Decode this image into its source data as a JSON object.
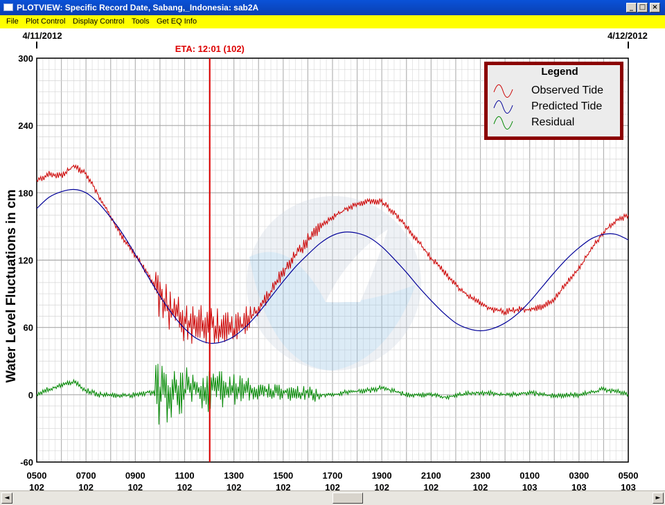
{
  "window": {
    "title": "PLOTVIEW: Specific Record Date, Sabang,_Indonesia: sab2A",
    "buttons": {
      "minimize": "_",
      "maximize": "□",
      "close": "×"
    }
  },
  "menu": [
    "File",
    "Plot Control",
    "Display Control",
    "Tools",
    "Get EQ Info"
  ],
  "scrollbar": {
    "left_arrow": "◄",
    "right_arrow": "►"
  },
  "colors": {
    "observed": "#cc0000",
    "predicted": "#000099",
    "residual": "#008800",
    "eta": "#dd0000",
    "legend_border": "#8b0000"
  },
  "chart_data": {
    "type": "line",
    "ylabel": "Water Level Fluctuations in cm",
    "ylim": [
      -60,
      300
    ],
    "yticks": [
      300,
      240,
      180,
      120,
      60,
      0,
      -60
    ],
    "xlim": [
      5,
      29
    ],
    "xticks": [
      {
        "h": 5,
        "time": "0500",
        "day": "102"
      },
      {
        "h": 7,
        "time": "0700",
        "day": "102"
      },
      {
        "h": 9,
        "time": "0900",
        "day": "102"
      },
      {
        "h": 11,
        "time": "1100",
        "day": "102"
      },
      {
        "h": 13,
        "time": "1300",
        "day": "102"
      },
      {
        "h": 15,
        "time": "1500",
        "day": "102"
      },
      {
        "h": 17,
        "time": "1700",
        "day": "102"
      },
      {
        "h": 19,
        "time": "1900",
        "day": "102"
      },
      {
        "h": 21,
        "time": "2100",
        "day": "102"
      },
      {
        "h": 23,
        "time": "2300",
        "day": "102"
      },
      {
        "h": 25,
        "time": "0100",
        "day": "103"
      },
      {
        "h": 27,
        "time": "0300",
        "day": "103"
      },
      {
        "h": 29,
        "time": "0500",
        "day": "103"
      }
    ],
    "date_labels": [
      {
        "h": 5,
        "text": "4/11/2012"
      },
      {
        "h": 29,
        "text": "4/12/2012"
      }
    ],
    "eta": {
      "h": 12.02,
      "label": "ETA: 12:01 (102)"
    },
    "legend": {
      "title": "Legend",
      "placement": "top-right",
      "entries": [
        "Observed Tide",
        "Predicted Tide",
        "Residual"
      ]
    },
    "series": [
      {
        "name": "Observed Tide",
        "x": [
          5,
          5.5,
          6,
          6.5,
          7,
          7.5,
          8,
          8.5,
          9,
          9.5,
          10,
          10.5,
          11,
          11.5,
          12,
          12.5,
          13,
          13.5,
          14,
          14.5,
          15,
          15.5,
          16,
          16.5,
          17,
          17.5,
          18,
          18.5,
          19,
          19.5,
          20,
          20.5,
          21,
          21.5,
          22,
          22.5,
          23,
          23.5,
          24,
          24.5,
          25,
          25.5,
          26,
          26.5,
          27,
          27.5,
          28,
          28.5,
          29
        ],
        "values": [
          190,
          197,
          195,
          204,
          197,
          178,
          158,
          140,
          124,
          108,
          88,
          74,
          66,
          63,
          62,
          60,
          58,
          66,
          76,
          92,
          110,
          124,
          138,
          150,
          158,
          165,
          170,
          173,
          172,
          162,
          150,
          136,
          122,
          110,
          98,
          88,
          82,
          76,
          74,
          76,
          76,
          78,
          85,
          100,
          112,
          130,
          145,
          155,
          160
        ]
      },
      {
        "name": "Predicted Tide",
        "x": [
          5,
          5.5,
          6,
          6.5,
          7,
          7.5,
          8,
          8.5,
          9,
          9.5,
          10,
          10.5,
          11,
          11.5,
          12,
          12.5,
          13,
          13.5,
          14,
          14.5,
          15,
          15.5,
          16,
          16.5,
          17,
          17.5,
          18,
          18.5,
          19,
          19.5,
          20,
          20.5,
          21,
          21.5,
          22,
          22.5,
          23,
          23.5,
          24,
          24.5,
          25,
          25.5,
          26,
          26.5,
          27,
          27.5,
          28,
          28.5,
          29
        ],
        "values": [
          166,
          176,
          181,
          183,
          180,
          171,
          158,
          143,
          125,
          106,
          88,
          72,
          59,
          50,
          46,
          47,
          52,
          61,
          73,
          87,
          101,
          114,
          125,
          135,
          142,
          145,
          144,
          140,
          132,
          121,
          109,
          96,
          84,
          73,
          64,
          59,
          57,
          59,
          64,
          72,
          83,
          96,
          109,
          121,
          131,
          139,
          143,
          143,
          138
        ]
      },
      {
        "name": "Residual",
        "x": [
          5,
          5.5,
          6,
          6.5,
          7,
          7.5,
          8,
          8.5,
          9,
          9.5,
          10,
          10.5,
          11,
          11.5,
          12,
          12.5,
          13,
          13.5,
          14,
          14.5,
          15,
          15.5,
          16,
          16.5,
          17,
          17.5,
          18,
          18.5,
          19,
          19.5,
          20,
          20.5,
          21,
          21.5,
          22,
          22.5,
          23,
          23.5,
          24,
          24.5,
          25,
          25.5,
          26,
          26.5,
          27,
          27.5,
          28,
          28.5,
          29
        ],
        "values": [
          0,
          5,
          8,
          12,
          4,
          0,
          0,
          -1,
          0,
          2,
          0,
          2,
          5,
          5,
          4,
          6,
          3,
          4,
          2,
          3,
          2,
          1,
          2,
          0,
          0,
          2,
          3,
          4,
          6,
          3,
          0,
          0,
          0,
          -2,
          -1,
          1,
          2,
          1,
          0,
          0,
          2,
          0,
          -1,
          0,
          0,
          2,
          5,
          3,
          0
        ]
      }
    ]
  }
}
